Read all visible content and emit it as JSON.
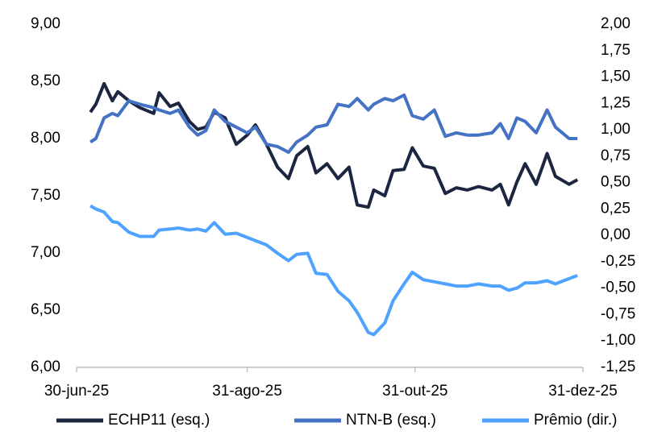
{
  "chart_data": {
    "type": "line",
    "x": [
      "2025-07-05",
      "2025-07-07",
      "2025-07-10",
      "2025-07-13",
      "2025-07-15",
      "2025-07-19",
      "2025-07-23",
      "2025-07-28",
      "2025-07-30",
      "2025-08-03",
      "2025-08-06",
      "2025-08-10",
      "2025-08-13",
      "2025-08-16",
      "2025-08-19",
      "2025-08-23",
      "2025-08-27",
      "2025-08-31",
      "2025-09-03",
      "2025-09-07",
      "2025-09-11",
      "2025-09-15",
      "2025-09-18",
      "2025-09-22",
      "2025-09-25",
      "2025-09-29",
      "2025-10-03",
      "2025-10-07",
      "2025-10-10",
      "2025-10-14",
      "2025-10-16",
      "2025-10-20",
      "2025-10-23",
      "2025-10-27",
      "2025-10-30",
      "2025-11-03",
      "2025-11-07",
      "2025-11-11",
      "2025-11-15",
      "2025-11-19",
      "2025-11-23",
      "2025-11-28",
      "2025-12-01",
      "2025-12-04",
      "2025-12-07",
      "2025-12-10",
      "2025-12-14",
      "2025-12-18",
      "2025-12-21",
      "2025-12-26",
      "2025-12-29"
    ],
    "series": [
      {
        "name": "ECHP11 (esq.)",
        "color": "#1c2640",
        "values": [
          8.23,
          8.3,
          8.48,
          8.33,
          8.41,
          8.33,
          8.27,
          8.22,
          8.4,
          8.28,
          8.31,
          8.15,
          8.08,
          8.1,
          8.23,
          8.18,
          7.95,
          8.03,
          8.12,
          7.95,
          7.75,
          7.65,
          7.85,
          7.93,
          7.7,
          7.78,
          7.65,
          7.75,
          7.42,
          7.4,
          7.55,
          7.5,
          7.72,
          7.73,
          7.92,
          7.76,
          7.74,
          7.52,
          7.57,
          7.55,
          7.58,
          7.55,
          7.6,
          7.42,
          7.62,
          7.78,
          7.6,
          7.87,
          7.67,
          7.6,
          7.64
        ]
      },
      {
        "name": "NTN-B (esq.)",
        "color": "#4472c4",
        "values": [
          7.97,
          8.0,
          8.18,
          8.22,
          8.2,
          8.33,
          8.3,
          8.27,
          8.25,
          8.22,
          8.25,
          8.1,
          8.03,
          8.07,
          8.25,
          8.15,
          8.1,
          8.05,
          8.1,
          7.95,
          7.93,
          7.88,
          7.97,
          8.03,
          8.1,
          8.12,
          8.3,
          8.28,
          8.35,
          8.25,
          8.3,
          8.35,
          8.33,
          8.38,
          8.2,
          8.17,
          8.25,
          8.02,
          8.05,
          8.03,
          8.03,
          8.05,
          8.13,
          8.0,
          8.18,
          8.15,
          8.05,
          8.25,
          8.1,
          8.0,
          8.0
        ]
      },
      {
        "name": "Prêmio (dir.)",
        "color": "#4da3ff",
        "axis": "y2",
        "values": [
          0.28,
          0.25,
          0.22,
          0.13,
          0.12,
          0.03,
          -0.01,
          -0.01,
          0.05,
          0.06,
          0.07,
          0.05,
          0.06,
          0.04,
          0.12,
          0.01,
          0.02,
          -0.02,
          -0.05,
          -0.09,
          -0.17,
          -0.24,
          -0.18,
          -0.17,
          -0.36,
          -0.37,
          -0.53,
          -0.62,
          -0.73,
          -0.92,
          -0.94,
          -0.83,
          -0.62,
          -0.46,
          -0.35,
          -0.42,
          -0.44,
          -0.46,
          -0.48,
          -0.48,
          -0.46,
          -0.48,
          -0.48,
          -0.52,
          -0.5,
          -0.45,
          -0.45,
          -0.43,
          -0.46,
          -0.41,
          -0.38
        ]
      }
    ],
    "xlim": [
      "2025-06-30",
      "2025-12-31"
    ],
    "xticks": [
      {
        "value": "2025-06-30",
        "label": "30-jun-25"
      },
      {
        "value": "2025-08-31",
        "label": "31-ago-25"
      },
      {
        "value": "2025-10-31",
        "label": "31-out-25"
      },
      {
        "value": "2025-12-31",
        "label": "31-dez-25"
      }
    ],
    "ylim": [
      6,
      9
    ],
    "yticks": [
      {
        "value": 6,
        "label": "6,00"
      },
      {
        "value": 6.5,
        "label": "6,50"
      },
      {
        "value": 7,
        "label": "7,00"
      },
      {
        "value": 7.5,
        "label": "7,50"
      },
      {
        "value": 8,
        "label": "8,00"
      },
      {
        "value": 8.5,
        "label": "8,50"
      },
      {
        "value": 9,
        "label": "9,00"
      }
    ],
    "y2lim": [
      -1.25,
      2
    ],
    "y2ticks": [
      {
        "value": -1.25,
        "label": "-1,25"
      },
      {
        "value": -1,
        "label": "-1,00"
      },
      {
        "value": -0.75,
        "label": "-0,75"
      },
      {
        "value": -0.5,
        "label": "-0,50"
      },
      {
        "value": -0.25,
        "label": "-0,25"
      },
      {
        "value": 0,
        "label": "0,00"
      },
      {
        "value": 0.25,
        "label": "0,25"
      },
      {
        "value": 0.5,
        "label": "0,50"
      },
      {
        "value": 0.75,
        "label": "0,75"
      },
      {
        "value": 1,
        "label": "1,00"
      },
      {
        "value": 1.25,
        "label": "1,25"
      },
      {
        "value": 1.5,
        "label": "1,50"
      },
      {
        "value": 1.75,
        "label": "1,75"
      },
      {
        "value": 2,
        "label": "2,00"
      }
    ],
    "grid": false,
    "legend": "bottom"
  }
}
